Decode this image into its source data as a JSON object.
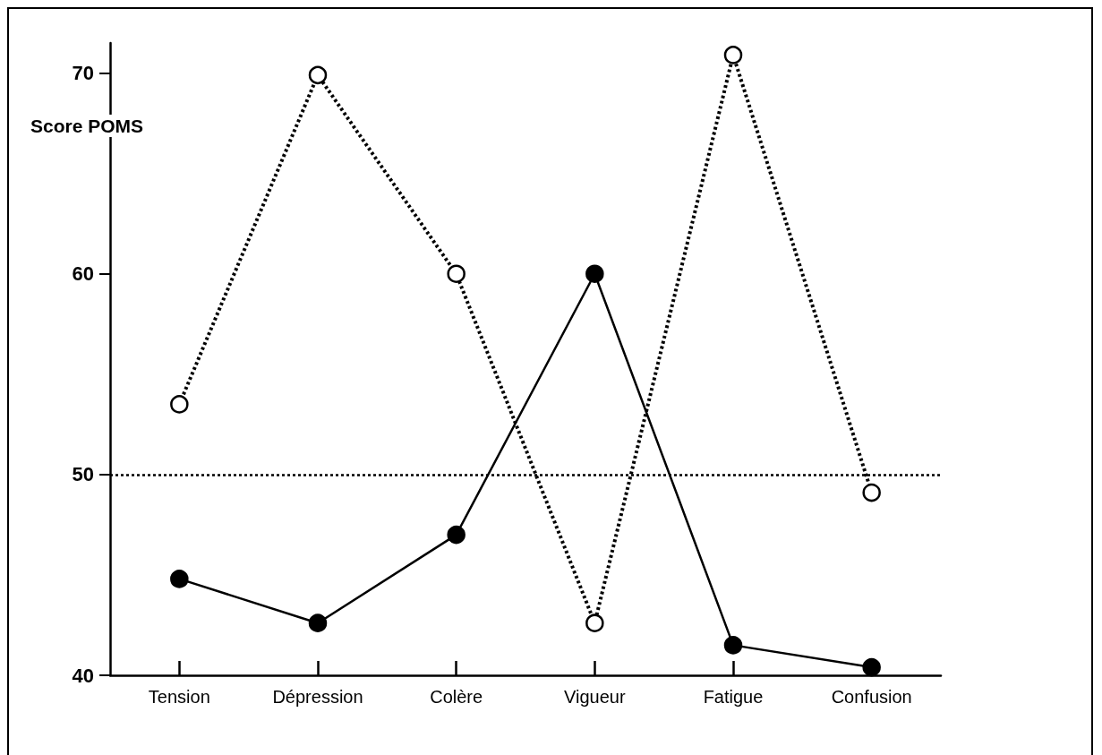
{
  "chart_data": {
    "type": "line",
    "ylabel": "Score POMS",
    "categories": [
      "Tension",
      "Dépression",
      "Colère",
      "Vigueur",
      "Fatigue",
      "Confusion"
    ],
    "series": [
      {
        "color": "#000000",
        "line_style": "dotted",
        "values": [
          53.5,
          69.9,
          60,
          42.6,
          70.9,
          49.1
        ]
      },
      {
        "color": "#000000",
        "line_style": "solid",
        "values": [
          44.8,
          42.6,
          47,
          60,
          41.5,
          40.4
        ]
      }
    ],
    "ylim": [
      40,
      71.5
    ],
    "yticks": [
      40,
      50,
      60,
      70
    ],
    "grid": false,
    "marker": "circle",
    "ref_lines": [
      {
        "axis": "y",
        "value": 50,
        "line_style": "dotted",
        "color": "#000000"
      }
    ]
  }
}
